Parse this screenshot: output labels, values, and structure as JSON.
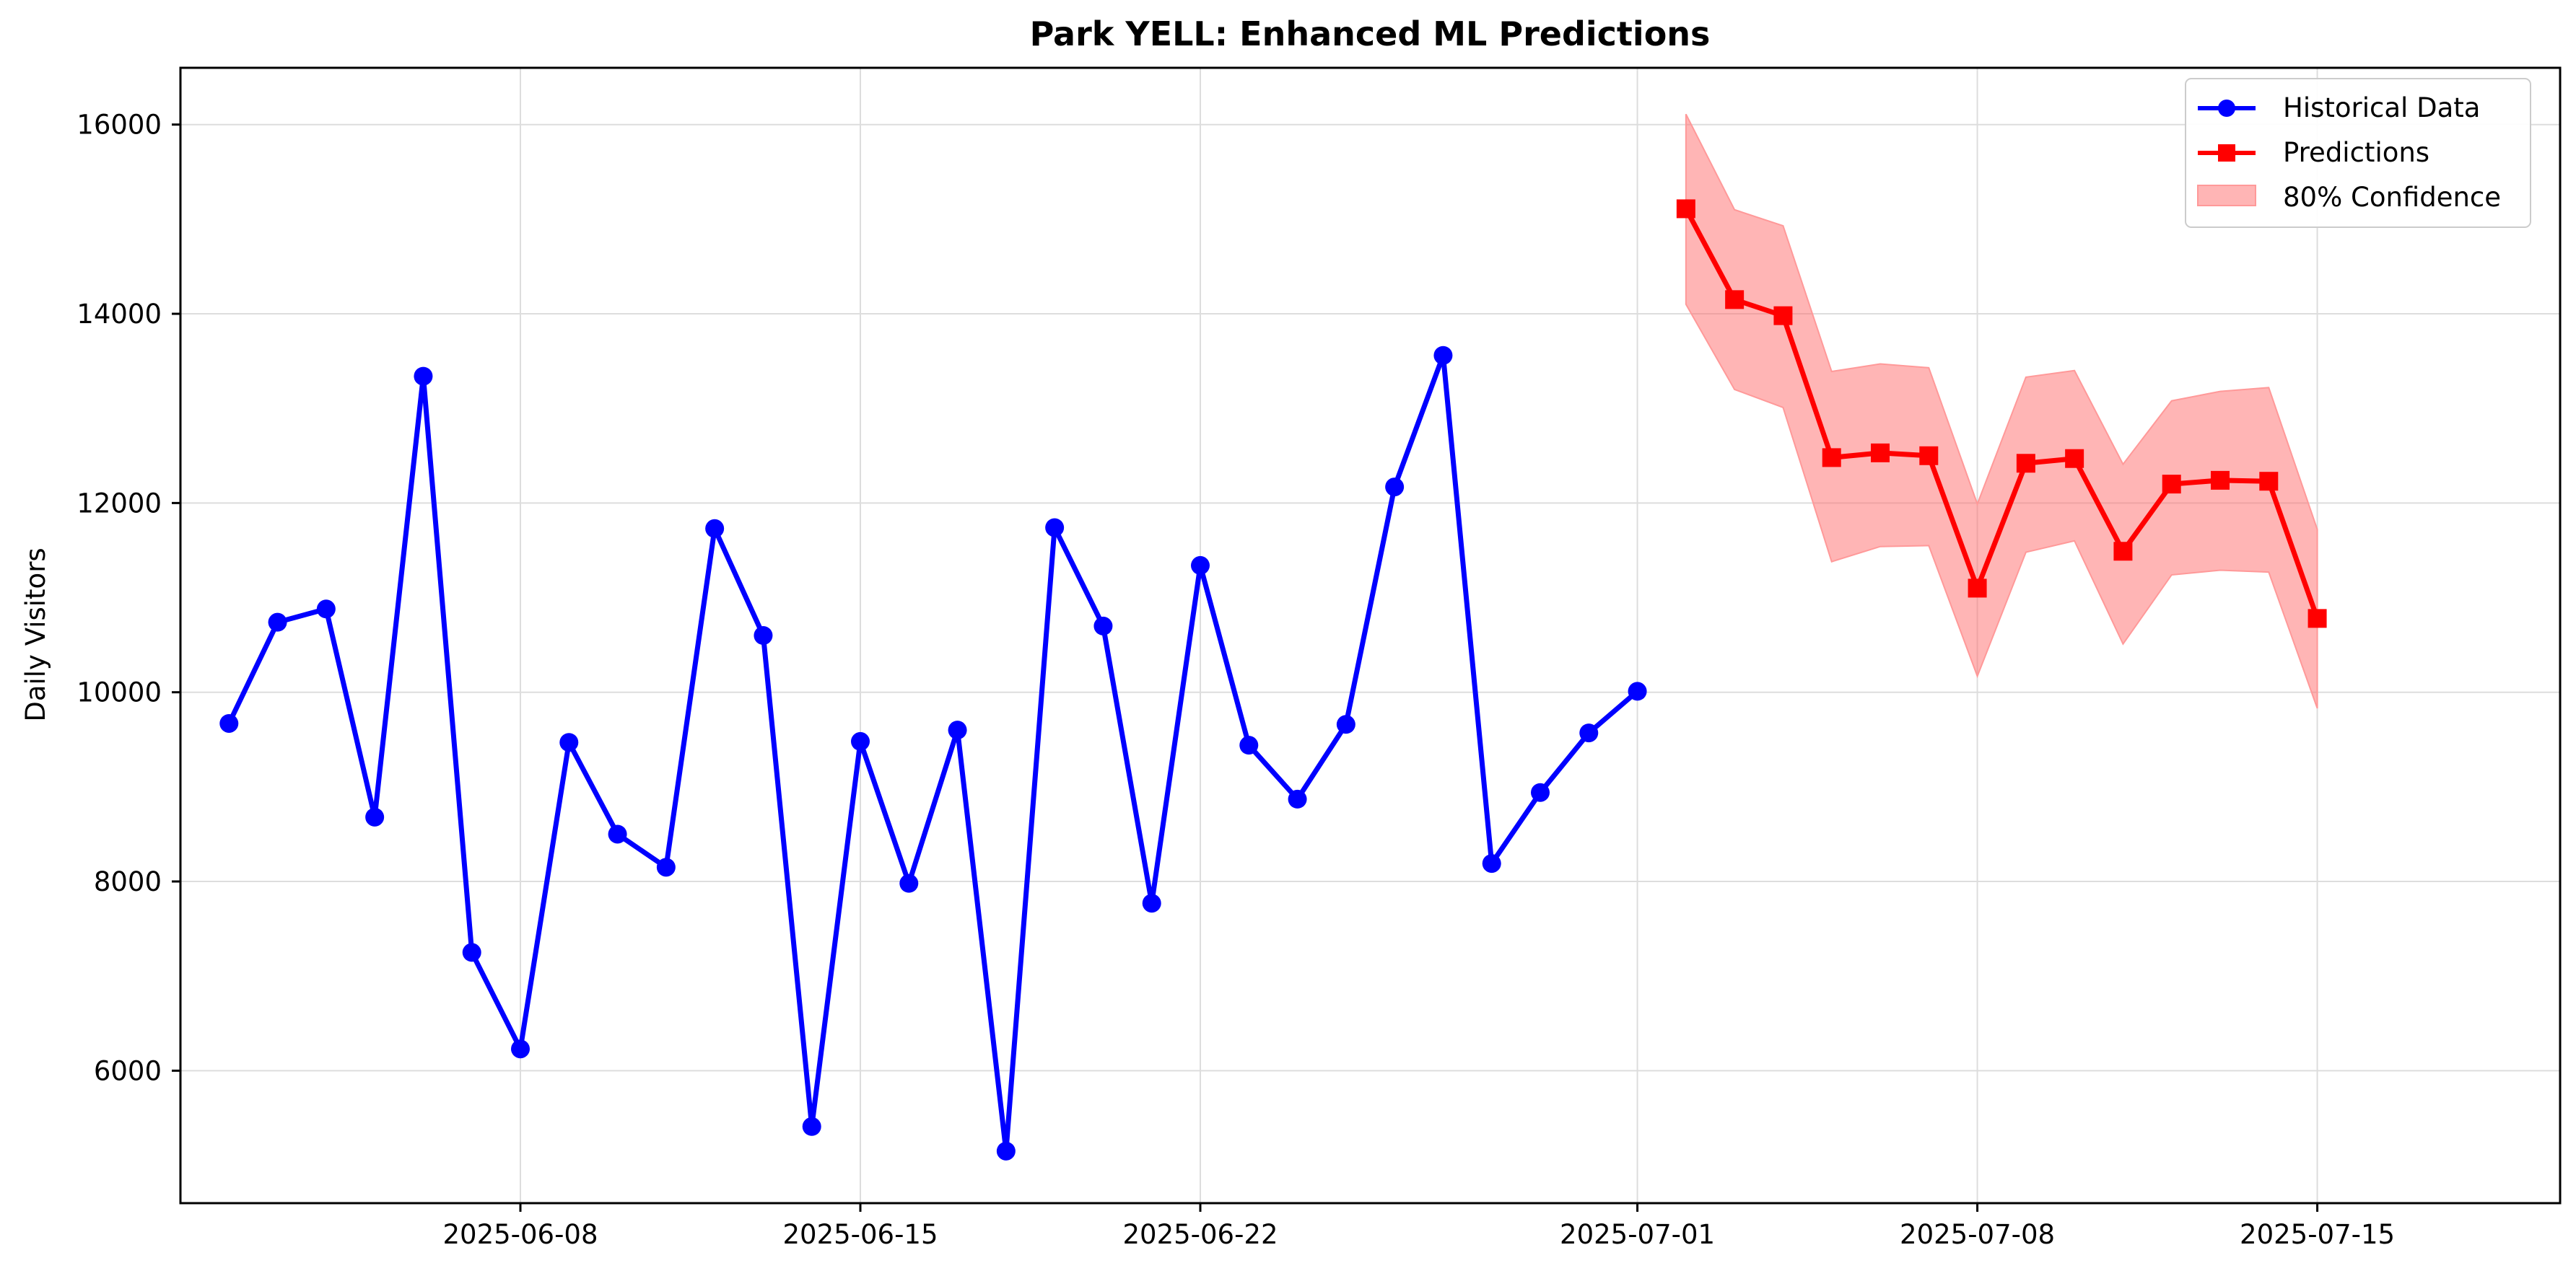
{
  "chart_data": {
    "type": "line",
    "title": "Park YELL: Enhanced ML Predictions",
    "xlabel": "",
    "ylabel": "Daily Visitors",
    "x_axis_type": "date",
    "xlim": [
      "2025-06-01",
      "2025-07-20"
    ],
    "ylim": [
      4600,
      16600
    ],
    "x_ticks": [
      "2025-06-08",
      "2025-06-15",
      "2025-06-22",
      "2025-07-01",
      "2025-07-08",
      "2025-07-15"
    ],
    "y_ticks": [
      6000,
      8000,
      10000,
      12000,
      14000,
      16000
    ],
    "grid": true,
    "legend_position": "top-right",
    "series": [
      {
        "name": "Historical Data",
        "color": "#0000ff",
        "marker": "circle",
        "points": [
          {
            "x": "2025-06-02",
            "y": 9670
          },
          {
            "x": "2025-06-03",
            "y": 10740
          },
          {
            "x": "2025-06-04",
            "y": 10880
          },
          {
            "x": "2025-06-05",
            "y": 8680
          },
          {
            "x": "2025-06-06",
            "y": 13340
          },
          {
            "x": "2025-06-07",
            "y": 7250
          },
          {
            "x": "2025-06-08",
            "y": 6230
          },
          {
            "x": "2025-06-09",
            "y": 9470
          },
          {
            "x": "2025-06-10",
            "y": 8500
          },
          {
            "x": "2025-06-11",
            "y": 8150
          },
          {
            "x": "2025-06-12",
            "y": 11730
          },
          {
            "x": "2025-06-13",
            "y": 10600
          },
          {
            "x": "2025-06-14",
            "y": 5410
          },
          {
            "x": "2025-06-15",
            "y": 9480
          },
          {
            "x": "2025-06-16",
            "y": 7980
          },
          {
            "x": "2025-06-17",
            "y": 9600
          },
          {
            "x": "2025-06-18",
            "y": 5150
          },
          {
            "x": "2025-06-19",
            "y": 11740
          },
          {
            "x": "2025-06-20",
            "y": 10700
          },
          {
            "x": "2025-06-21",
            "y": 7770
          },
          {
            "x": "2025-06-22",
            "y": 11340
          },
          {
            "x": "2025-06-23",
            "y": 9440
          },
          {
            "x": "2025-06-24",
            "y": 8870
          },
          {
            "x": "2025-06-25",
            "y": 9660
          },
          {
            "x": "2025-06-26",
            "y": 12170
          },
          {
            "x": "2025-06-27",
            "y": 13560
          },
          {
            "x": "2025-06-28",
            "y": 8190
          },
          {
            "x": "2025-06-29",
            "y": 8940
          },
          {
            "x": "2025-06-30",
            "y": 9570
          },
          {
            "x": "2025-07-01",
            "y": 10010
          }
        ]
      },
      {
        "name": "Predictions",
        "color": "#ff0000",
        "marker": "square",
        "points": [
          {
            "x": "2025-07-02",
            "y": 15110
          },
          {
            "x": "2025-07-03",
            "y": 14150
          },
          {
            "x": "2025-07-04",
            "y": 13980
          },
          {
            "x": "2025-07-05",
            "y": 12480
          },
          {
            "x": "2025-07-06",
            "y": 12530
          },
          {
            "x": "2025-07-07",
            "y": 12500
          },
          {
            "x": "2025-07-08",
            "y": 11100
          },
          {
            "x": "2025-07-09",
            "y": 12420
          },
          {
            "x": "2025-07-10",
            "y": 12470
          },
          {
            "x": "2025-07-11",
            "y": 11490
          },
          {
            "x": "2025-07-12",
            "y": 12200
          },
          {
            "x": "2025-07-13",
            "y": 12240
          },
          {
            "x": "2025-07-14",
            "y": 12230
          },
          {
            "x": "2025-07-15",
            "y": 10780
          }
        ]
      }
    ],
    "confidence_band": {
      "name": "80% Confidence",
      "color": "#ff6b6b",
      "opacity": 0.5,
      "lower": [
        14100,
        13200,
        13010,
        11380,
        11540,
        11550,
        10170,
        11480,
        11600,
        10510,
        11240,
        11290,
        11270,
        9830
      ],
      "upper": [
        16110,
        15100,
        14930,
        13390,
        13470,
        13430,
        11990,
        13330,
        13400,
        12410,
        13080,
        13180,
        13220,
        11720
      ]
    }
  }
}
